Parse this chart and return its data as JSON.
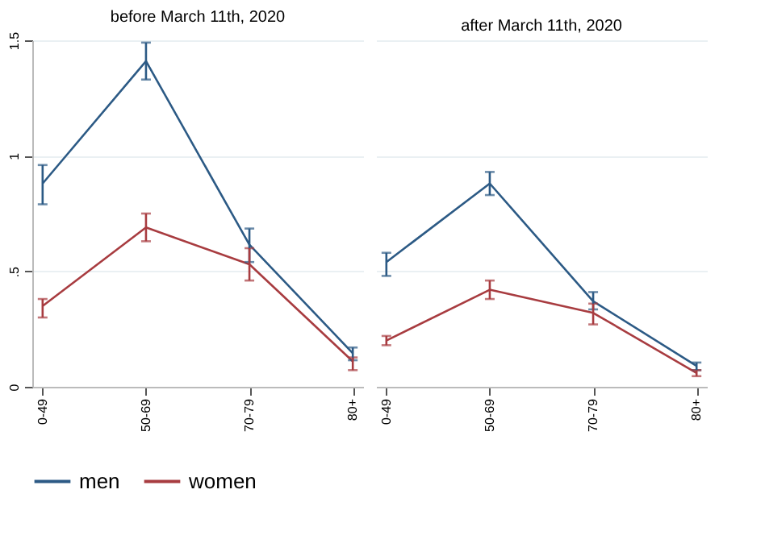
{
  "chart_data": [
    {
      "type": "line",
      "title": "before March 11th, 2020",
      "categories": [
        "0-49",
        "50-69",
        "70-79",
        "80+"
      ],
      "ylim": [
        0,
        1.5
      ],
      "yticks": [
        0,
        {
          "value": 0.5,
          "label": ".5"
        },
        1,
        1.5
      ],
      "grid": "y",
      "legend": "bottom",
      "series": [
        {
          "name": "men",
          "color": "#2c5a85",
          "values": [
            0.88,
            1.41,
            0.615,
            0.145
          ],
          "errors": [
            [
              0.79,
              0.96
            ],
            [
              1.33,
              1.49
            ],
            [
              0.54,
              0.685
            ],
            [
              0.115,
              0.17
            ]
          ]
        },
        {
          "name": "women",
          "color": "#a83c40",
          "values": [
            0.35,
            0.69,
            0.53,
            0.11
          ],
          "errors": [
            [
              0.3,
              0.38
            ],
            [
              0.63,
              0.75
            ],
            [
              0.46,
              0.6
            ],
            [
              0.072,
              0.127
            ]
          ]
        }
      ]
    },
    {
      "type": "line",
      "title": "after March 11th, 2020",
      "categories": [
        "0-49",
        "50-69",
        "70-79",
        "80+"
      ],
      "ylim": [
        0,
        1.5
      ],
      "yticks": [
        0,
        0.5,
        1,
        1.5
      ],
      "grid": "y",
      "tick_labels": "x",
      "legend": "bottom",
      "series": [
        {
          "name": "men",
          "color": "#2c5a85",
          "values": [
            0.54,
            0.88,
            0.37,
            0.09
          ],
          "errors": [
            [
              0.48,
              0.58
            ],
            [
              0.83,
              0.93
            ],
            [
              0.335,
              0.41
            ],
            [
              0.072,
              0.105
            ]
          ]
        },
        {
          "name": "women",
          "color": "#a83c40",
          "values": [
            0.2,
            0.42,
            0.32,
            0.06
          ],
          "errors": [
            [
              0.18,
              0.22
            ],
            [
              0.38,
              0.46
            ],
            [
              0.27,
              0.36
            ],
            [
              0.046,
              0.072
            ]
          ]
        }
      ]
    }
  ]
}
